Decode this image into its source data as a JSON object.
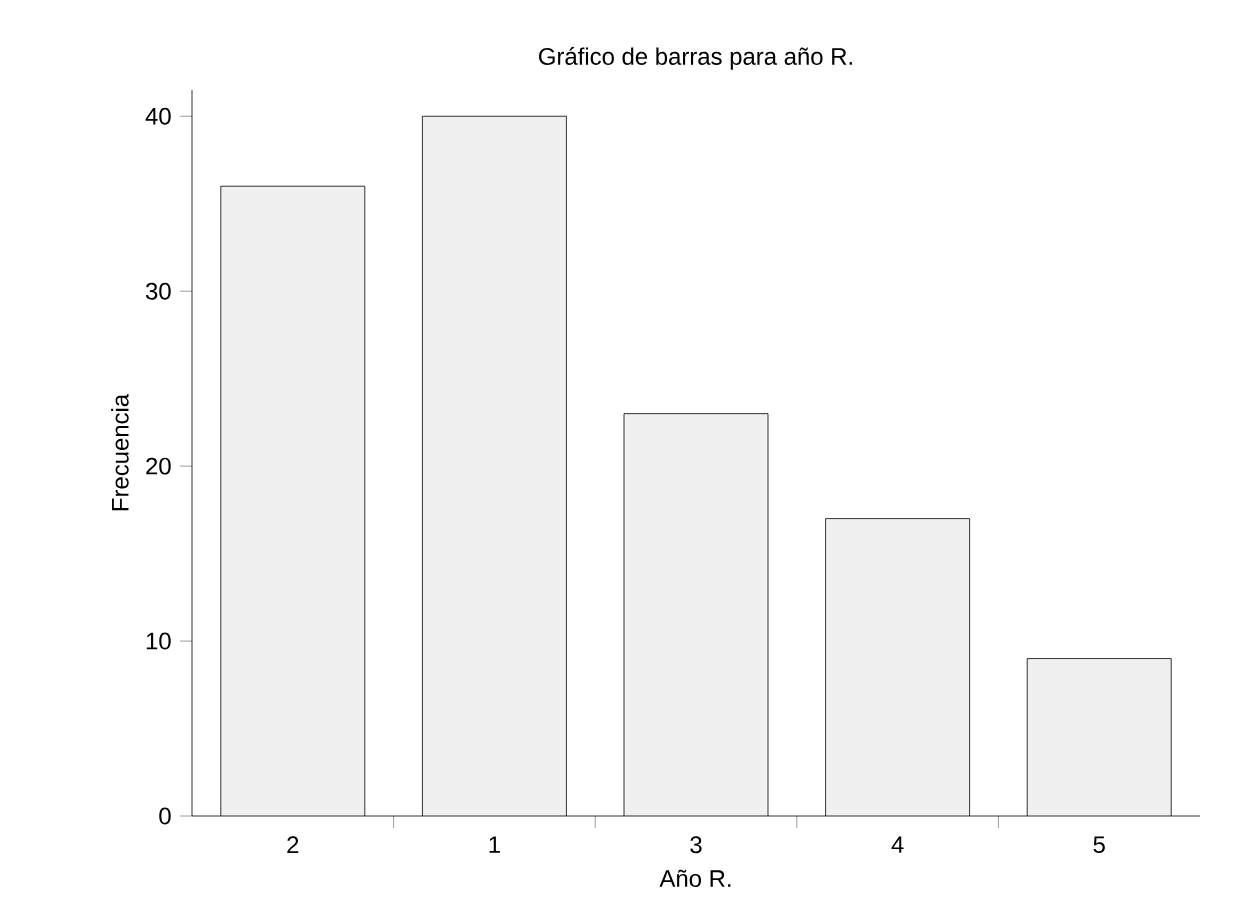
{
  "chart_data": {
    "type": "bar",
    "title": "Gráfico de barras para año R.",
    "xlabel": "Año R.",
    "ylabel": "Frecuencia",
    "categories": [
      "2",
      "1",
      "3",
      "4",
      "5"
    ],
    "values": [
      36,
      40,
      23,
      17,
      9
    ],
    "color": "#f0f0f0",
    "ylim": [
      0,
      41.5
    ],
    "yticks": [
      0,
      10,
      20,
      30,
      40
    ],
    "grid": false
  }
}
